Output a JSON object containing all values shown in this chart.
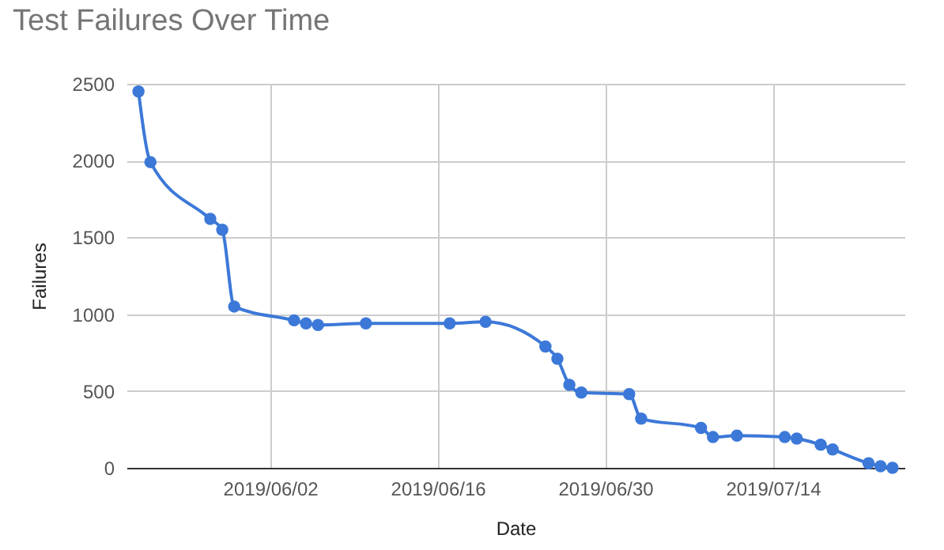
{
  "chart_data": {
    "type": "line",
    "title": "Test Failures Over Time",
    "xlabel": "Date",
    "ylabel": "Failures",
    "x": [
      "2019-05-22",
      "2019-05-23",
      "2019-05-28",
      "2019-05-29",
      "2019-05-30",
      "2019-06-04",
      "2019-06-05",
      "2019-06-06",
      "2019-06-10",
      "2019-06-17",
      "2019-06-20",
      "2019-06-25",
      "2019-06-26",
      "2019-06-27",
      "2019-06-28",
      "2019-07-02",
      "2019-07-03",
      "2019-07-08",
      "2019-07-09",
      "2019-07-11",
      "2019-07-15",
      "2019-07-16",
      "2019-07-18",
      "2019-07-19",
      "2019-07-22",
      "2019-07-23",
      "2019-07-24"
    ],
    "series": [
      {
        "color": "#3c78d8",
        "values": [
          2450,
          1990,
          1620,
          1550,
          1050,
          960,
          940,
          930,
          940,
          940,
          950,
          790,
          710,
          540,
          490,
          480,
          320,
          260,
          200,
          210,
          200,
          190,
          150,
          120,
          30,
          10,
          0
        ]
      }
    ],
    "xlim": [
      "2019-05-21",
      "2019-07-25"
    ],
    "xticks": [
      {
        "value": "2019-06-02",
        "label": "2019/06/02"
      },
      {
        "value": "2019-06-16",
        "label": "2019/06/16"
      },
      {
        "value": "2019-06-30",
        "label": "2019/06/30"
      },
      {
        "value": "2019-07-14",
        "label": "2019/07/14"
      }
    ],
    "ylim": [
      0,
      2500
    ],
    "yticks": [
      0,
      500,
      1000,
      1500,
      2000,
      2500
    ],
    "grid": true,
    "marker": "circle",
    "line_style": "solid"
  }
}
